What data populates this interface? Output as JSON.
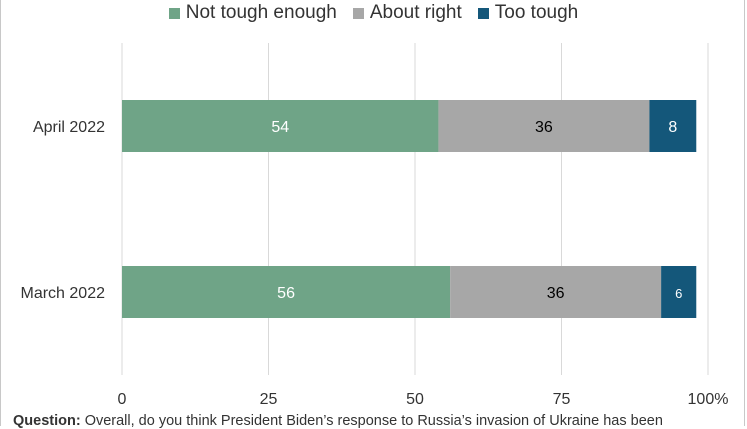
{
  "chart_data": {
    "type": "bar",
    "orientation": "horizontal",
    "stacked": true,
    "categories": [
      "April 2022",
      "March 2022"
    ],
    "series": [
      {
        "name": "Not tough enough",
        "values": [
          54,
          56
        ],
        "color": "#6fa487",
        "label_color": "#ffffff"
      },
      {
        "name": "About right",
        "values": [
          36,
          36
        ],
        "color": "#a7a7a7",
        "label_color": "#000000"
      },
      {
        "name": "Too tough",
        "values": [
          8,
          6
        ],
        "color": "#14577a",
        "label_color": "#ffffff"
      }
    ],
    "data_labels": [
      [
        "54",
        "36",
        "8"
      ],
      [
        "56",
        "36",
        "6"
      ]
    ],
    "xlim": [
      0,
      100
    ],
    "xticks": [
      "0",
      "25",
      "50",
      "75",
      "100%"
    ],
    "grid": "vertical",
    "legend": "top-center"
  },
  "footnote": {
    "bold": "Question:",
    "text": " Overall, do you think President Biden’s response to Russia’s invasion of Ukraine has been"
  }
}
